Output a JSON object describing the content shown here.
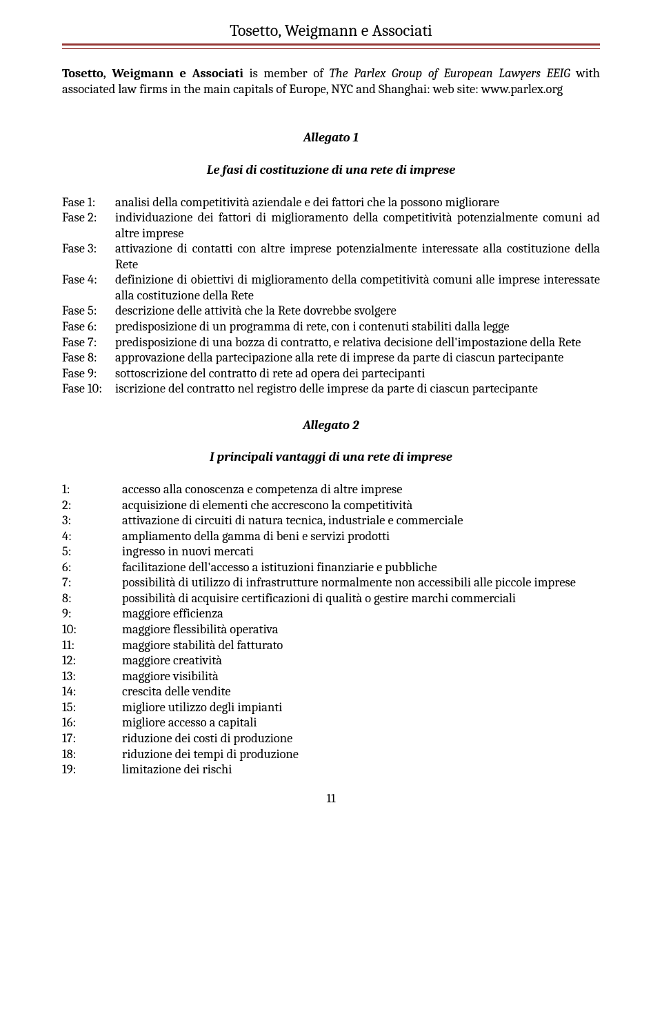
{
  "header": {
    "title": "Tosetto, Weigmann e Associati"
  },
  "intro": {
    "firm": "Tosetto, Weigmann e Associati",
    "mid": " is member of ",
    "ital": "The Parlex Group of European Lawyers EEIG",
    "rest": " with associated law firms in the main capitals of Europe, NYC and Shanghai: web site: www.parlex.org"
  },
  "allegato1": {
    "title": "Allegato 1",
    "subtitle": "Le fasi di costituzione di una rete di imprese",
    "items": [
      {
        "label": "Fase 1:",
        "text": "analisi della competitività aziendale e dei fattori che la possono migliorare"
      },
      {
        "label": "Fase 2:",
        "text": "individuazione dei fattori di miglioramento della competitività potenzialmente comuni ad altre imprese"
      },
      {
        "label": "Fase 3:",
        "text": "attivazione di contatti con altre imprese potenzialmente interessate alla costituzione della Rete"
      },
      {
        "label": "Fase 4:",
        "text": "definizione di obiettivi di miglioramento della competitività comuni alle imprese interessate alla costituzione della Rete"
      },
      {
        "label": "Fase 5:",
        "text": "descrizione delle attività che la Rete dovrebbe svolgere"
      },
      {
        "label": "Fase 6:",
        "text": "predisposizione di un programma di rete, con i contenuti stabiliti dalla legge"
      },
      {
        "label": "Fase 7:",
        "text": "predisposizione di una bozza di contratto, e relativa decisione dell'impostazione della Rete"
      },
      {
        "label": "Fase 8:",
        "text": "approvazione della partecipazione alla rete di imprese da parte di ciascun partecipante"
      },
      {
        "label": "Fase 9:",
        "text": "sottoscrizione del contratto di rete ad opera dei partecipanti"
      },
      {
        "label": "Fase 10:",
        "text": "iscrizione del contratto nel registro delle imprese da parte di ciascun partecipante"
      }
    ]
  },
  "allegato2": {
    "title": "Allegato 2",
    "subtitle": "I principali vantaggi di una rete di imprese",
    "items": [
      {
        "label": "1:",
        "text": "accesso alla conoscenza e competenza di altre imprese"
      },
      {
        "label": "2:",
        "text": "acquisizione di elementi che accrescono la competitività"
      },
      {
        "label": "3:",
        "text": "attivazione di circuiti di natura tecnica, industriale e commerciale"
      },
      {
        "label": "4:",
        "text": "ampliamento della gamma di beni e servizi prodotti"
      },
      {
        "label": "5:",
        "text": "ingresso in nuovi mercati"
      },
      {
        "label": "6:",
        "text": "facilitazione dell'accesso a istituzioni finanziarie e pubbliche"
      },
      {
        "label": "7:",
        "text": "possibilità di utilizzo di infrastrutture normalmente non accessibili alle piccole imprese"
      },
      {
        "label": "8:",
        "text": "possibilità di acquisire certificazioni di qualità o gestire marchi commerciali"
      },
      {
        "label": "9:",
        "text": "maggiore efficienza"
      },
      {
        "label": "10:",
        "text": "maggiore flessibilità operativa"
      },
      {
        "label": "11:",
        "text": "maggiore stabilità del fatturato"
      },
      {
        "label": "12:",
        "text": "maggiore creatività"
      },
      {
        "label": "13:",
        "text": "maggiore visibilità"
      },
      {
        "label": "14:",
        "text": "crescita delle vendite"
      },
      {
        "label": "15:",
        "text": "migliore utilizzo degli impianti"
      },
      {
        "label": "16:",
        "text": "migliore accesso a capitali"
      },
      {
        "label": "17:",
        "text": "riduzione dei costi di produzione"
      },
      {
        "label": "18:",
        "text": "riduzione dei tempi di produzione"
      },
      {
        "label": "19:",
        "text": "limitazione dei rischi"
      }
    ]
  },
  "pageNumber": "11"
}
